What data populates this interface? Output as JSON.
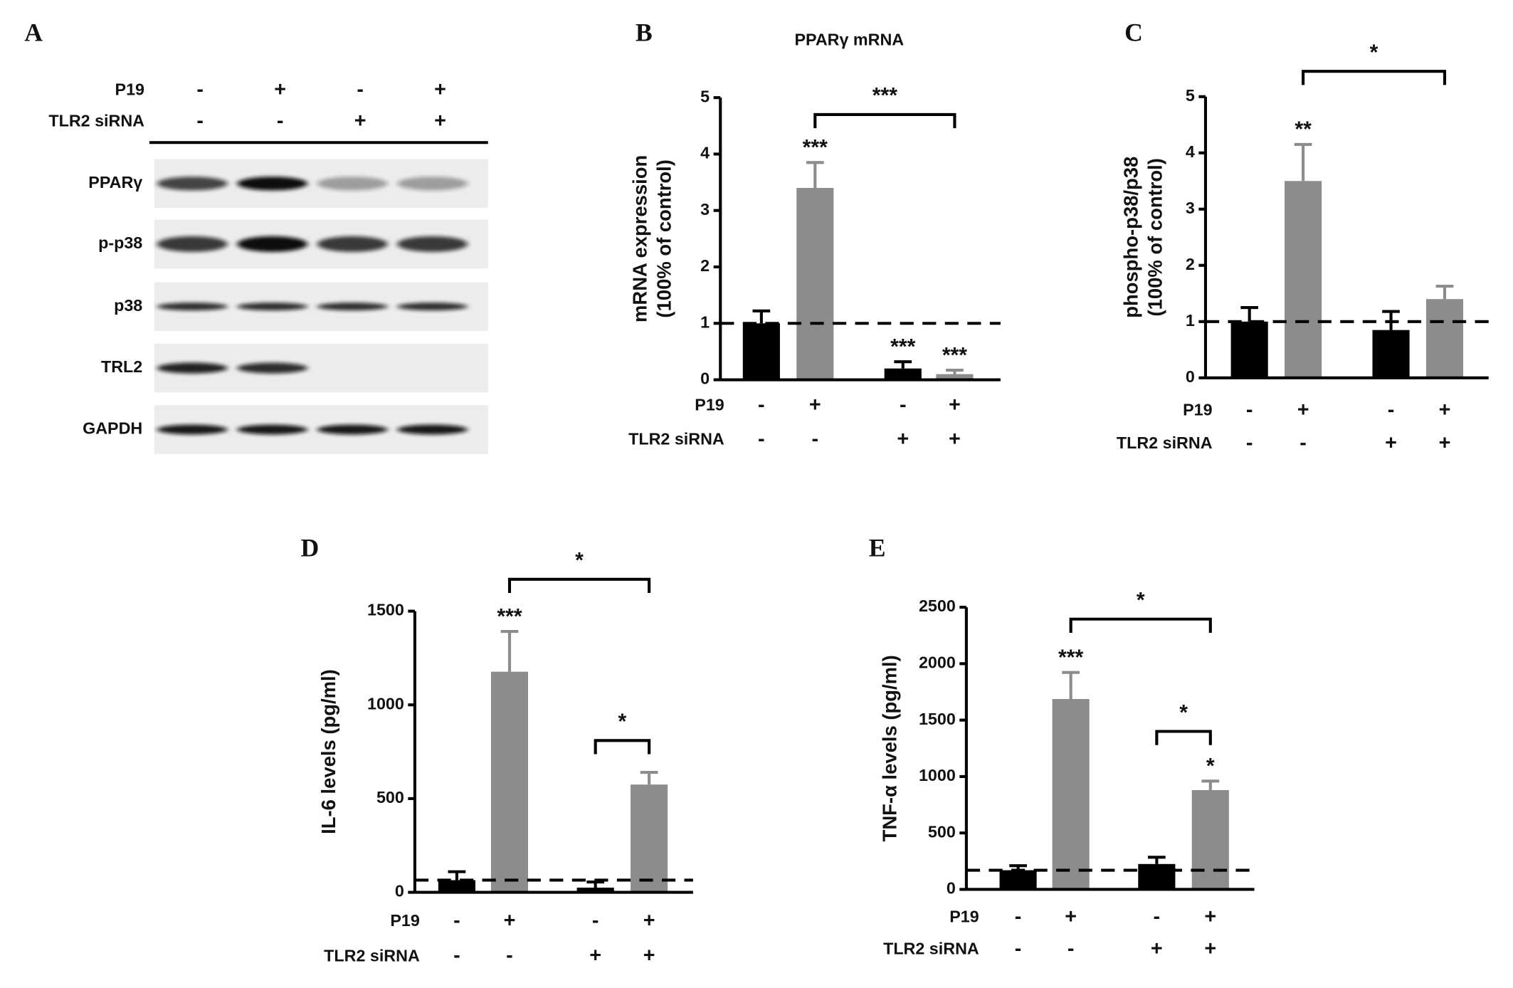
{
  "blot": {
    "panel": "A",
    "conditions": [
      {
        "name": "P19",
        "values": [
          "-",
          "+",
          "-",
          "+"
        ]
      },
      {
        "name": "TLR2 siRNA",
        "values": [
          "-",
          "-",
          "+",
          "+"
        ]
      }
    ],
    "bands": [
      "PPARγ",
      "p-p38",
      "p38",
      "TRL2",
      "GAPDH"
    ]
  },
  "chart_data": [
    {
      "type": "bar",
      "panel": "B",
      "title": "PPARγ mRNA",
      "ylabel": [
        "mRNA expression",
        "(100% of control)"
      ],
      "ylim": [
        0,
        5
      ],
      "yticks": [
        0,
        1,
        2,
        3,
        4,
        5
      ],
      "values": [
        1.0,
        3.4,
        0.2,
        0.1
      ],
      "errors": [
        0.22,
        0.45,
        0.12,
        0.07
      ],
      "colors": [
        "#000000",
        "#8c8c8c",
        "#000000",
        "#8c8c8c"
      ],
      "annotations": [
        null,
        "***",
        "***",
        "***"
      ],
      "reference_line": 1,
      "brackets": [
        {
          "from": 1,
          "to": 3,
          "y": 4.7,
          "label": "***"
        }
      ],
      "conditions": [
        {
          "name": "P19",
          "values": [
            "-",
            "+",
            "-",
            "+"
          ]
        },
        {
          "name": "TLR2 siRNA",
          "values": [
            "-",
            "-",
            "+",
            "+"
          ]
        }
      ]
    },
    {
      "type": "bar",
      "panel": "C",
      "ylabel": [
        "phospho-p38/p38",
        "(100% of control)"
      ],
      "ylim": [
        0,
        5
      ],
      "yticks": [
        0,
        1,
        2,
        3,
        4,
        5
      ],
      "values": [
        1.0,
        3.5,
        0.85,
        1.4
      ],
      "errors": [
        0.25,
        0.65,
        0.33,
        0.23
      ],
      "colors": [
        "#000000",
        "#8c8c8c",
        "#000000",
        "#8c8c8c"
      ],
      "annotations": [
        null,
        "**",
        null,
        null
      ],
      "reference_line": 1,
      "brackets": [
        {
          "from": 1,
          "to": 3,
          "y": 5.45,
          "label": "*"
        }
      ],
      "conditions": [
        {
          "name": "P19",
          "values": [
            "-",
            "+",
            "-",
            "+"
          ]
        },
        {
          "name": "TLR2 siRNA",
          "values": [
            "-",
            "-",
            "+",
            "+"
          ]
        }
      ]
    },
    {
      "type": "bar",
      "panel": "D",
      "ylabel": [
        "IL-6 levels (pg/ml)"
      ],
      "ylim": [
        0,
        1500
      ],
      "yticks": [
        0,
        500,
        1000,
        1500
      ],
      "values": [
        65,
        1177,
        25,
        575
      ],
      "errors": [
        45,
        215,
        30,
        65
      ],
      "colors": [
        "#000000",
        "#8c8c8c",
        "#000000",
        "#8c8c8c"
      ],
      "annotations": [
        null,
        "***",
        null,
        null
      ],
      "reference_line": 65,
      "brackets": [
        {
          "from": 1,
          "to": 3,
          "y": 1670,
          "label": "*"
        },
        {
          "from": 2,
          "to": 3,
          "y": 810,
          "label": "*"
        }
      ],
      "conditions": [
        {
          "name": "P19",
          "values": [
            "-",
            "+",
            "-",
            "+"
          ]
        },
        {
          "name": "TLR2 siRNA",
          "values": [
            "-",
            "-",
            "+",
            "+"
          ]
        }
      ]
    },
    {
      "type": "bar",
      "panel": "E",
      "ylabel": [
        "TNF-α levels (pg/ml)"
      ],
      "ylim": [
        0,
        2500
      ],
      "yticks": [
        0,
        500,
        1000,
        1500,
        2000,
        2500
      ],
      "values": [
        170,
        1687,
        225,
        880
      ],
      "errors": [
        40,
        235,
        60,
        80
      ],
      "colors": [
        "#000000",
        "#8c8c8c",
        "#000000",
        "#8c8c8c"
      ],
      "annotations": [
        null,
        "***",
        null,
        "*"
      ],
      "reference_line": 170,
      "brackets": [
        {
          "from": 1,
          "to": 3,
          "y": 2395,
          "label": "*"
        },
        {
          "from": 2,
          "to": 3,
          "y": 1400,
          "label": "*"
        }
      ],
      "conditions": [
        {
          "name": "P19",
          "values": [
            "-",
            "+",
            "-",
            "+"
          ]
        },
        {
          "name": "TLR2 siRNA",
          "values": [
            "-",
            "-",
            "+",
            "+"
          ]
        }
      ]
    }
  ]
}
